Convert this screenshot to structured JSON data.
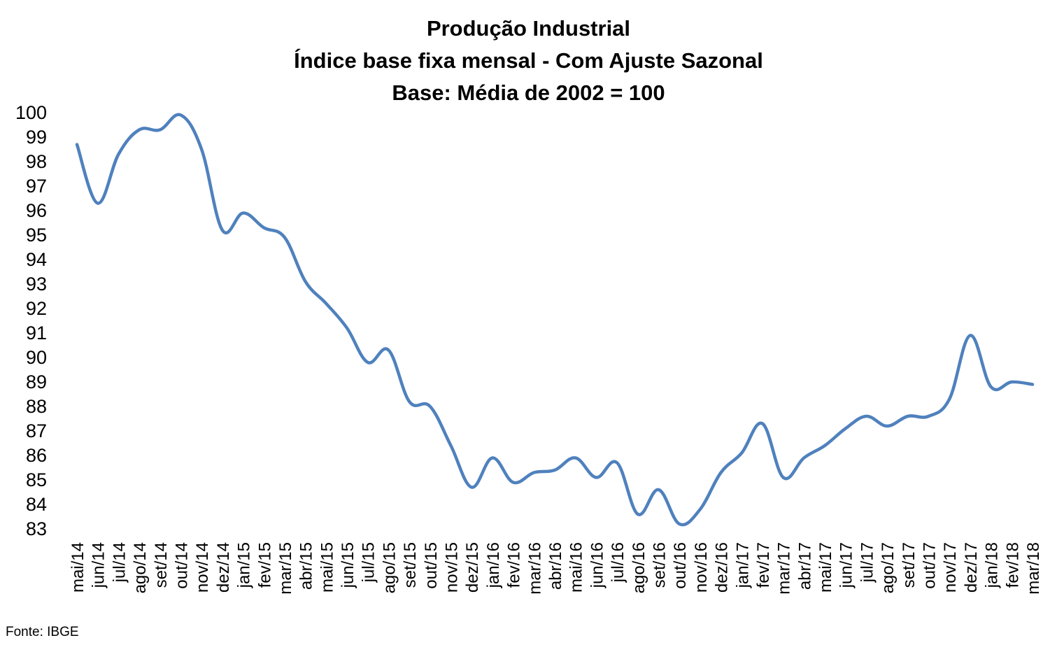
{
  "title_lines": [
    "Produção Industrial",
    "Índice base fixa mensal - Com Ajuste Sazonal",
    "Base: Média de 2002 = 100"
  ],
  "source": "Fonte: IBGE",
  "line_color": "#4F81BD",
  "chart_data": {
    "type": "line",
    "title": "Produção Industrial",
    "subtitle": [
      "Índice base fixa mensal - Com Ajuste Sazonal",
      "Base: Média de 2002 = 100"
    ],
    "xlabel": "",
    "ylabel": "",
    "ylim": [
      83,
      100
    ],
    "yticks": [
      100,
      99,
      98,
      97,
      96,
      95,
      94,
      93,
      92,
      91,
      90,
      89,
      88,
      87,
      86,
      85,
      84,
      83
    ],
    "grid": false,
    "legend": "none",
    "categories": [
      "mai/14",
      "jun/14",
      "jul/14",
      "ago/14",
      "set/14",
      "out/14",
      "nov/14",
      "dez/14",
      "jan/15",
      "fev/15",
      "mar/15",
      "abr/15",
      "mai/15",
      "jun/15",
      "jul/15",
      "ago/15",
      "set/15",
      "out/15",
      "nov/15",
      "dez/15",
      "jan/16",
      "fev/16",
      "mar/16",
      "abr/16",
      "mai/16",
      "jun/16",
      "jul/16",
      "ago/16",
      "set/16",
      "out/16",
      "nov/16",
      "dez/16",
      "jan/17",
      "fev/17",
      "mar/17",
      "abr/17",
      "mai/17",
      "jun/17",
      "jul/17",
      "ago/17",
      "set/17",
      "out/17",
      "nov/17",
      "dez/17",
      "jan/18",
      "fev/18",
      "mar/18"
    ],
    "series": [
      {
        "values": [
          98.7,
          96.3,
          98.3,
          99.3,
          99.3,
          99.9,
          98.5,
          95.2,
          95.9,
          95.3,
          94.9,
          93.1,
          92.2,
          91.2,
          89.8,
          90.3,
          88.2,
          88.0,
          86.4,
          84.7,
          85.9,
          84.9,
          85.3,
          85.4,
          85.9,
          85.1,
          85.7,
          83.6,
          84.6,
          83.2,
          83.8,
          85.3,
          86.1,
          87.3,
          85.1,
          85.9,
          86.4,
          87.1,
          87.6,
          87.2,
          87.6,
          87.6,
          88.3,
          90.9,
          88.8,
          89.0,
          88.9
        ]
      }
    ]
  }
}
